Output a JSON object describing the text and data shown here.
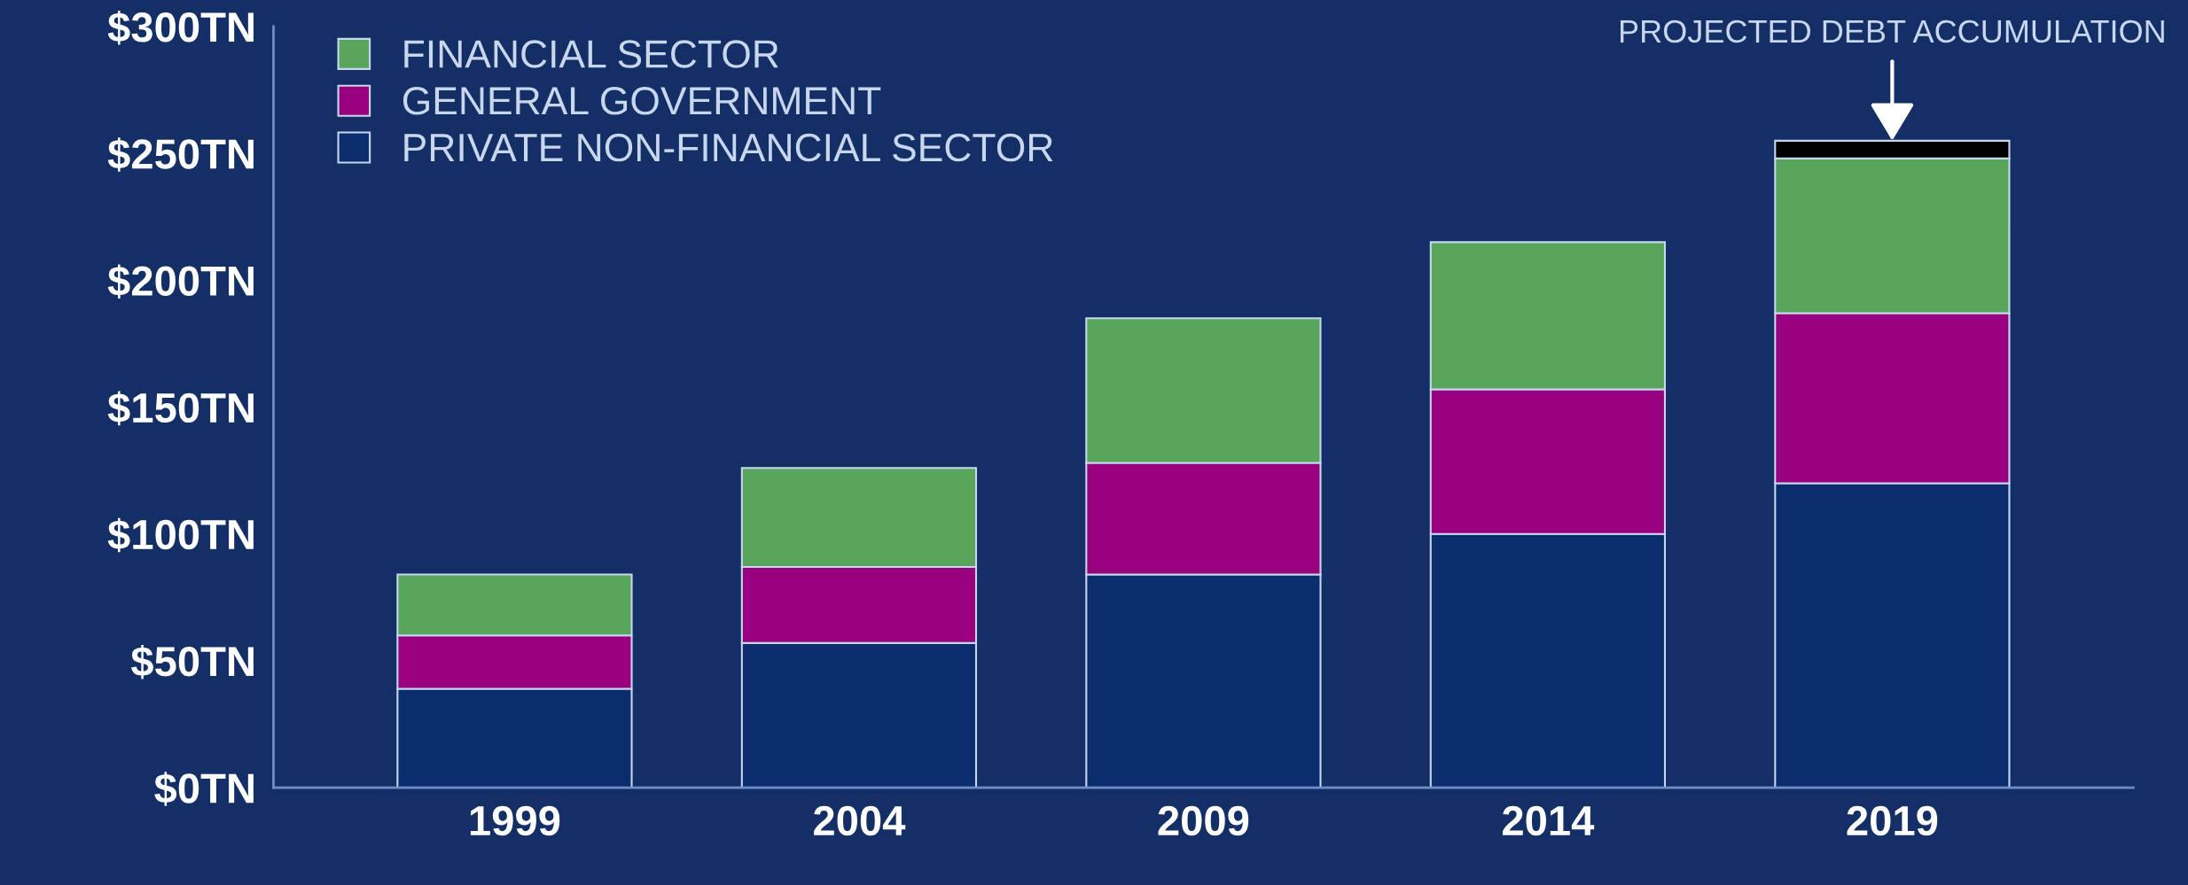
{
  "chart_data": {
    "type": "bar",
    "stacked": true,
    "categories": [
      "1999",
      "2004",
      "2009",
      "2014",
      "2019"
    ],
    "series": [
      {
        "name": "PRIVATE NON-FINANCIAL SECTOR",
        "color": "#0b2d6e",
        "values": [
          39,
          57,
          84,
          100,
          120
        ]
      },
      {
        "name": "GENERAL GOVERNMENT",
        "color": "#990080",
        "values": [
          21,
          30,
          44,
          57,
          67
        ]
      },
      {
        "name": "FINANCIAL SECTOR",
        "color": "#58a55c",
        "values": [
          24,
          39,
          57,
          58,
          61
        ]
      },
      {
        "color": "#000000",
        "values": [
          null,
          null,
          null,
          null,
          7
        ]
      }
    ],
    "ylim": [
      0,
      300
    ],
    "yticks": [
      {
        "value": 0,
        "label": "$0TN"
      },
      {
        "value": 50,
        "label": "$50TN"
      },
      {
        "value": 100,
        "label": "$100TN"
      },
      {
        "value": 150,
        "label": "$150TN"
      },
      {
        "value": 200,
        "label": "$200TN"
      },
      {
        "value": 250,
        "label": "$250TN"
      },
      {
        "value": 300,
        "label": "$300TN"
      }
    ],
    "annotations": [
      {
        "text": "PROJECTED DEBT ACCUMULATION",
        "x": "2019",
        "y": 255
      }
    ],
    "legend": "top left",
    "grid": false
  }
}
